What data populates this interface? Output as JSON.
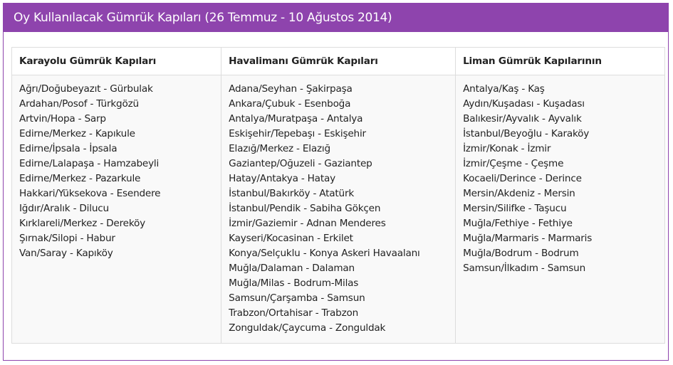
{
  "title": "Oy Kullanılacak Gümrük Kapıları (26 Temmuz - 10 Ağustos 2014)",
  "colors": {
    "accent": "#8e44ad"
  },
  "columns": [
    {
      "header": "Karayolu Gümrük Kapıları",
      "items": [
        "Ağrı/Doğubeyazıt - Gürbulak",
        "Ardahan/Posof - Türkgözü",
        "Artvin/Hopa - Sarp",
        "Edirne/Merkez - Kapıkule",
        "Edirne/İpsala - İpsala",
        "Edirne/Lalapaşa - Hamzabeyli",
        "Edirne/Merkez - Pazarkule",
        "Hakkari/Yüksekova - Esendere",
        "Iğdır/Aralık - Dilucu",
        "Kırklareli/Merkez - Dereköy",
        "Şırnak/Silopi - Habur",
        "Van/Saray - Kapıköy"
      ]
    },
    {
      "header": "Havalimanı Gümrük Kapıları",
      "items": [
        "Adana/Seyhan - Şakirpaşa",
        "Ankara/Çubuk - Esenboğa",
        "Antalya/Muratpaşa - Antalya",
        "Eskişehir/Tepebaşı - Eskişehir",
        "Elazığ/Merkez - Elazığ",
        "Gaziantep/Oğuzeli - Gaziantep",
        "Hatay/Antakya - Hatay",
        "İstanbul/Bakırköy - Atatürk",
        "İstanbul/Pendik - Sabiha Gökçen",
        "İzmir/Gaziemir - Adnan Menderes",
        "Kayseri/Kocasinan - Erkilet",
        "Konya/Selçuklu - Konya Askeri Havaalanı",
        "Muğla/Dalaman - Dalaman",
        "Muğla/Milas - Bodrum-Milas",
        "Samsun/Çarşamba - Samsun",
        "Trabzon/Ortahisar - Trabzon",
        "Zonguldak/Çaycuma - Zonguldak"
      ]
    },
    {
      "header": "Liman Gümrük Kapılarının",
      "items": [
        "Antalya/Kaş - Kaş",
        "Aydın/Kuşadası - Kuşadası",
        "Balıkesir/Ayvalık - Ayvalık",
        "İstanbul/Beyoğlu - Karaköy",
        "İzmir/Konak - İzmir",
        "İzmir/Çeşme - Çeşme",
        "Kocaeli/Derince - Derince",
        "Mersin/Akdeniz - Mersin",
        "Mersin/Silifke - Taşucu",
        "Muğla/Fethiye - Fethiye",
        "Muğla/Marmaris - Marmaris",
        "Muğla/Bodrum - Bodrum",
        "Samsun/İlkadım - Samsun"
      ]
    }
  ]
}
